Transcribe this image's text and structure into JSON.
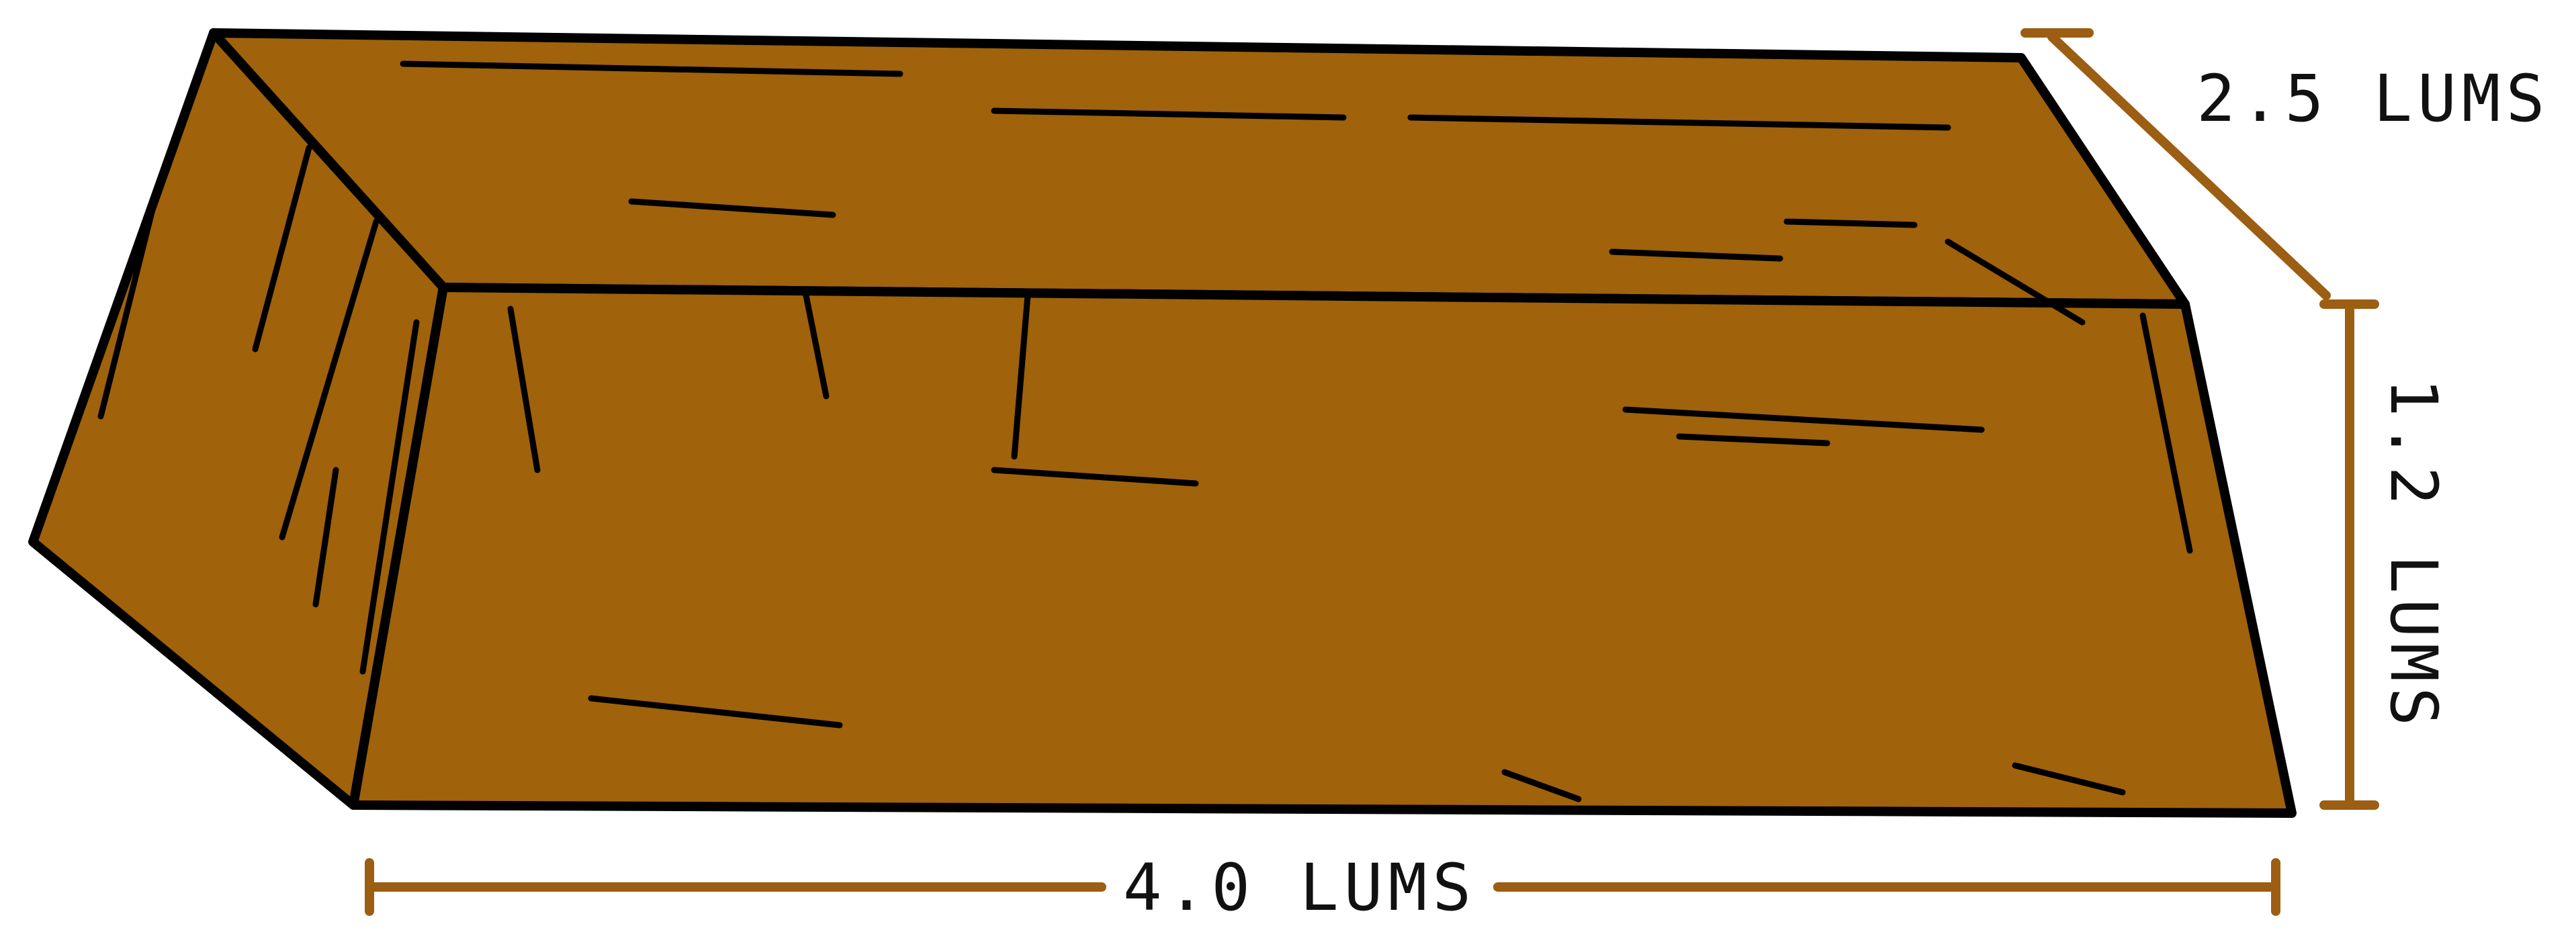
{
  "dimensions": {
    "depth": "2.5 LUMS",
    "height": "1.2 LUMS",
    "width": "4.0 LUMS"
  }
}
